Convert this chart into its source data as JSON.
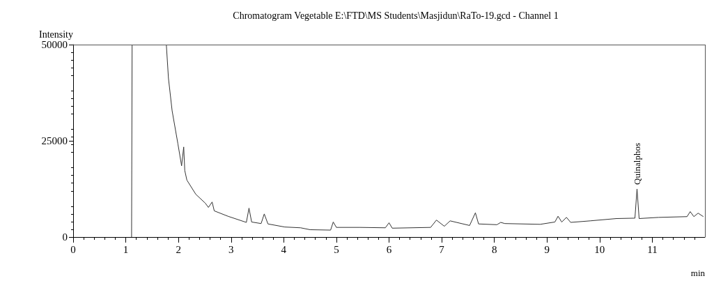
{
  "chart_data": {
    "type": "line",
    "title": "Chromatogram Vegetable E:\\FTD\\MS Students\\Masjidun\\RaTo-19.gcd - Channel 1",
    "xlabel": "min",
    "ylabel": "Intensity",
    "x": [
      1.11,
      1.12,
      1.13,
      1.77,
      1.81,
      1.88,
      1.99,
      2.06,
      2.1,
      2.12,
      2.16,
      2.33,
      2.51,
      2.57,
      2.64,
      2.68,
      2.94,
      3.29,
      3.34,
      3.39,
      3.57,
      3.63,
      3.7,
      4.02,
      4.32,
      4.5,
      4.89,
      4.94,
      5.0,
      5.45,
      5.93,
      6.0,
      6.06,
      6.79,
      6.9,
      7.05,
      7.16,
      7.53,
      7.64,
      7.7,
      8.05,
      8.12,
      8.2,
      8.87,
      9.15,
      9.21,
      9.28,
      9.37,
      9.45,
      9.82,
      10.32,
      10.67,
      10.71,
      10.75,
      11.12,
      11.66,
      11.72,
      11.79,
      11.87,
      11.97
    ],
    "values": [
      0,
      50000,
      null,
      50000,
      41300,
      32800,
      24200,
      18500,
      23400,
      17300,
      14800,
      11100,
      8800,
      7700,
      9100,
      6800,
      5400,
      3800,
      7500,
      3900,
      3500,
      6000,
      3400,
      2600,
      2400,
      1900,
      1800,
      3900,
      2500,
      2500,
      2400,
      3700,
      2300,
      2500,
      4400,
      2800,
      4200,
      3000,
      6300,
      3400,
      3200,
      3800,
      3500,
      3300,
      3900,
      5400,
      3900,
      5100,
      3800,
      4200,
      4800,
      4900,
      12500,
      4800,
      5100,
      5300,
      6600,
      5300,
      6200,
      5300
    ],
    "color": "#333333",
    "xlim": [
      0,
      12
    ],
    "xticks": [
      0,
      1,
      2,
      3,
      4,
      5,
      6,
      7,
      8,
      9,
      10,
      11
    ],
    "ylim": [
      0,
      50000
    ],
    "yticks": [
      0,
      25000,
      50000
    ],
    "grid": false,
    "marker": "none",
    "line_style": "solid",
    "annotations": [
      {
        "text": "Quinalphos",
        "x": 10.71,
        "y": 12500
      }
    ]
  }
}
